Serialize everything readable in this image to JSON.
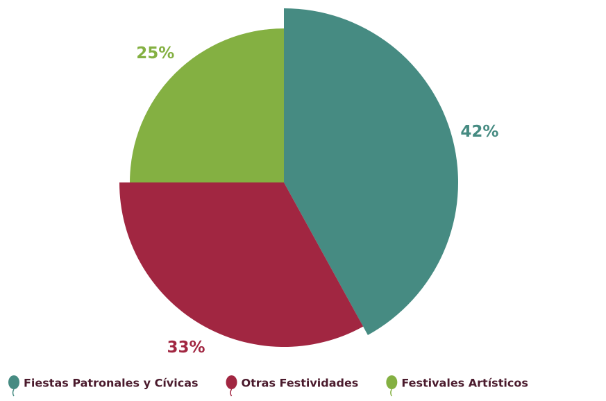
{
  "chart_data": {
    "type": "pie",
    "categories": [
      "Fiestas Patronales y Cívicas",
      "Otras Festividades",
      "Festivales Artísticos"
    ],
    "values": [
      42,
      33,
      25
    ],
    "value_labels": [
      "42%",
      "33%",
      "25%"
    ],
    "colors": [
      "#468b82",
      "#a12641",
      "#84b042"
    ]
  }
}
